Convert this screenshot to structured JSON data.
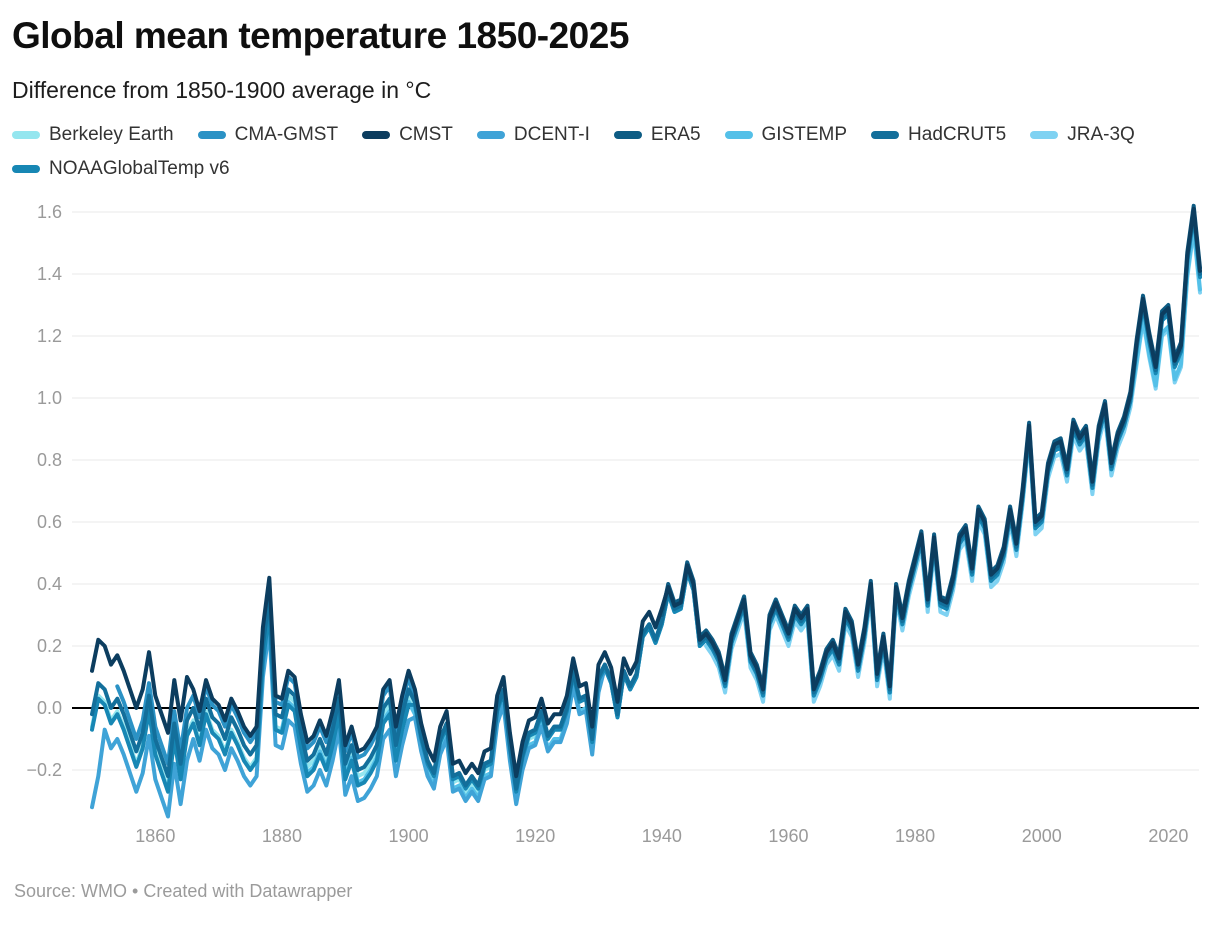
{
  "chart_data": {
    "type": "line",
    "title": "Global mean temperature 1850-2025",
    "subtitle": "Difference from 1850-1900 average in °C",
    "source": "Source: WMO • Created with Datawrapper",
    "legend_position": "top",
    "grid": "horizontal",
    "zero_line": true,
    "x_range": [
      1850,
      2025
    ],
    "ylim": [
      -0.35,
      1.65
    ],
    "yticks": [
      1.6,
      1.4,
      1.2,
      1.0,
      0.8,
      0.6,
      0.4,
      0.2,
      0,
      -0.2
    ],
    "ytick_labels": [
      "1.6",
      "1.4",
      "1.2",
      "1.0",
      "0.8",
      "0.6",
      "0.4",
      "0.2",
      "0.0",
      "−0.2"
    ],
    "xticks": [
      1860,
      1880,
      1900,
      1920,
      1940,
      1960,
      1980,
      2000,
      2020
    ],
    "xtick_labels": [
      "1860",
      "1880",
      "1900",
      "1920",
      "1940",
      "1960",
      "1980",
      "2000",
      "2020"
    ],
    "years_start": 1850,
    "years_end": 2025,
    "values_note": "ensemble_values are annual anomalies (°C vs 1850-1900) read off the chart; each dataset's line = ensemble value + its offset for year ≤ bound, offsets as [bound_year, offset] pairs",
    "ensemble_values": [
      -0.02,
      0.08,
      0.06,
      0.0,
      0.03,
      -0.02,
      -0.08,
      -0.14,
      -0.08,
      0.04,
      -0.1,
      -0.16,
      -0.22,
      -0.05,
      -0.18,
      -0.04,
      0.0,
      -0.07,
      0.03,
      -0.03,
      -0.05,
      -0.1,
      -0.03,
      -0.07,
      -0.12,
      -0.15,
      -0.12,
      0.2,
      0.36,
      -0.02,
      -0.03,
      0.06,
      0.04,
      -0.08,
      -0.17,
      -0.15,
      -0.1,
      -0.15,
      -0.07,
      0.03,
      -0.18,
      -0.12,
      -0.2,
      -0.19,
      -0.16,
      -0.12,
      0.0,
      0.03,
      -0.12,
      -0.02,
      0.06,
      0.02,
      -0.09,
      -0.17,
      -0.21,
      -0.1,
      -0.05,
      -0.22,
      -0.21,
      -0.25,
      -0.22,
      -0.25,
      -0.18,
      -0.17,
      0.0,
      0.06,
      -0.12,
      -0.26,
      -0.15,
      -0.08,
      -0.07,
      -0.01,
      -0.09,
      -0.06,
      -0.06,
      0.0,
      0.12,
      0.03,
      0.04,
      -0.1,
      0.1,
      0.14,
      0.09,
      -0.02,
      0.12,
      0.07,
      0.11,
      0.24,
      0.27,
      0.22,
      0.28,
      0.38,
      0.32,
      0.33,
      0.45,
      0.39,
      0.21,
      0.23,
      0.2,
      0.16,
      0.08,
      0.22,
      0.28,
      0.34,
      0.16,
      0.12,
      0.05,
      0.28,
      0.33,
      0.28,
      0.23,
      0.31,
      0.28,
      0.31,
      0.05,
      0.1,
      0.17,
      0.2,
      0.15,
      0.3,
      0.26,
      0.13,
      0.24,
      0.39,
      0.1,
      0.22,
      0.06,
      0.38,
      0.28,
      0.39,
      0.47,
      0.55,
      0.34,
      0.54,
      0.34,
      0.33,
      0.41,
      0.54,
      0.57,
      0.44,
      0.63,
      0.59,
      0.42,
      0.44,
      0.5,
      0.63,
      0.52,
      0.69,
      0.9,
      0.59,
      0.61,
      0.77,
      0.84,
      0.85,
      0.76,
      0.91,
      0.86,
      0.89,
      0.72,
      0.89,
      0.97,
      0.78,
      0.87,
      0.92,
      1.0,
      1.17,
      1.31,
      1.19,
      1.09,
      1.26,
      1.28,
      1.11,
      1.16,
      1.45,
      1.6,
      1.4
    ],
    "series": [
      {
        "name": "Berkeley Earth",
        "color": "#94e6ef",
        "start_year": 1850,
        "draw_order": 1,
        "offsets": [
          [
            1880,
            -0.04
          ],
          [
            1920,
            -0.02
          ],
          [
            2026,
            0
          ]
        ]
      },
      {
        "name": "CMA-GMST",
        "color": "#2b92c5",
        "start_year": 1854,
        "draw_order": 5,
        "offsets": [
          [
            1900,
            0.04
          ],
          [
            2026,
            0
          ]
        ]
      },
      {
        "name": "CMST",
        "color": "#0c3d5f",
        "start_year": 1850,
        "draw_order": 9,
        "offsets": [
          [
            1865,
            0.14
          ],
          [
            1900,
            0.06
          ],
          [
            1940,
            0.04
          ],
          [
            2026,
            0.01
          ]
        ]
      },
      {
        "name": "DCENT-I",
        "color": "#3fa3d7",
        "start_year": 1850,
        "draw_order": 4,
        "offsets": [
          [
            1851,
            -0.3
          ],
          [
            1865,
            -0.13
          ],
          [
            1900,
            -0.1
          ],
          [
            1930,
            -0.05
          ],
          [
            2026,
            -0.01
          ]
        ]
      },
      {
        "name": "ERA5",
        "color": "#0d5c84",
        "start_year": 1940,
        "draw_order": 8,
        "offsets": [
          [
            2026,
            0.02
          ]
        ]
      },
      {
        "name": "GISTEMP",
        "color": "#54c0e8",
        "start_year": 1880,
        "draw_order": 3,
        "offsets": [
          [
            1930,
            -0.04
          ],
          [
            2014,
            -0.01
          ],
          [
            2026,
            -0.05
          ]
        ]
      },
      {
        "name": "HadCRUT5",
        "color": "#136f9b",
        "start_year": 1850,
        "draw_order": 7,
        "offsets": [
          [
            2026,
            0
          ]
        ]
      },
      {
        "name": "JRA-3Q",
        "color": "#7fd2f2",
        "start_year": 1947,
        "draw_order": 2,
        "offsets": [
          [
            2014,
            -0.03
          ],
          [
            2026,
            -0.06
          ]
        ]
      },
      {
        "name": "NOAAGlobalTemp v6",
        "color": "#1787b4",
        "start_year": 1850,
        "draw_order": 6,
        "offsets": [
          [
            1900,
            -0.05
          ],
          [
            2026,
            -0.01
          ]
        ]
      }
    ]
  }
}
